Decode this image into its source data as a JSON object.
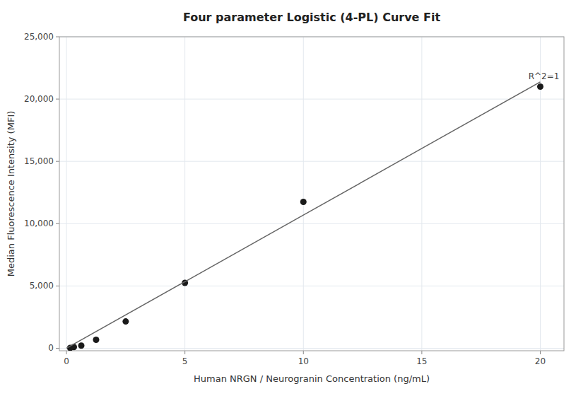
{
  "chart_data": {
    "type": "scatter",
    "title": "Four parameter Logistic (4-PL) Curve Fit",
    "x_label": "Human NRGN / Neurogranin Concentration (ng/mL)",
    "y_label": "Median Fluorescence Intensity (MFI)",
    "series": [
      {
        "type": "scatter",
        "color": "#1a1a1a",
        "marker": "circle",
        "x": [
          0.156,
          0.313,
          0.625,
          1.25,
          2.5,
          5.0,
          10.0,
          20.0
        ],
        "values": [
          28,
          95,
          210,
          680,
          2150,
          5250,
          11750,
          21000
        ]
      },
      {
        "type": "line",
        "color": "#666666",
        "line_style": "solid",
        "x": [
          0.001,
          5,
          10,
          15,
          20
        ],
        "values": [
          1.069,
          5345,
          10690,
          16035,
          21380
        ]
      }
    ],
    "annotations": [
      {
        "text": "R^2=1",
        "x": 19.5,
        "y": 21400
      }
    ],
    "xlim": [
      -0.3,
      21
    ],
    "ylim": [
      -200,
      25000
    ],
    "xticks": [
      0,
      5,
      10,
      15,
      20
    ],
    "yticks": [
      0,
      {
        "value": 5000,
        "label": "5,000"
      },
      {
        "value": 10000,
        "label": "10,000"
      },
      {
        "value": 15000,
        "label": "15,000"
      },
      {
        "value": 20000,
        "label": "20,000"
      },
      {
        "value": 25000,
        "label": "25,000"
      }
    ],
    "grid": true
  }
}
